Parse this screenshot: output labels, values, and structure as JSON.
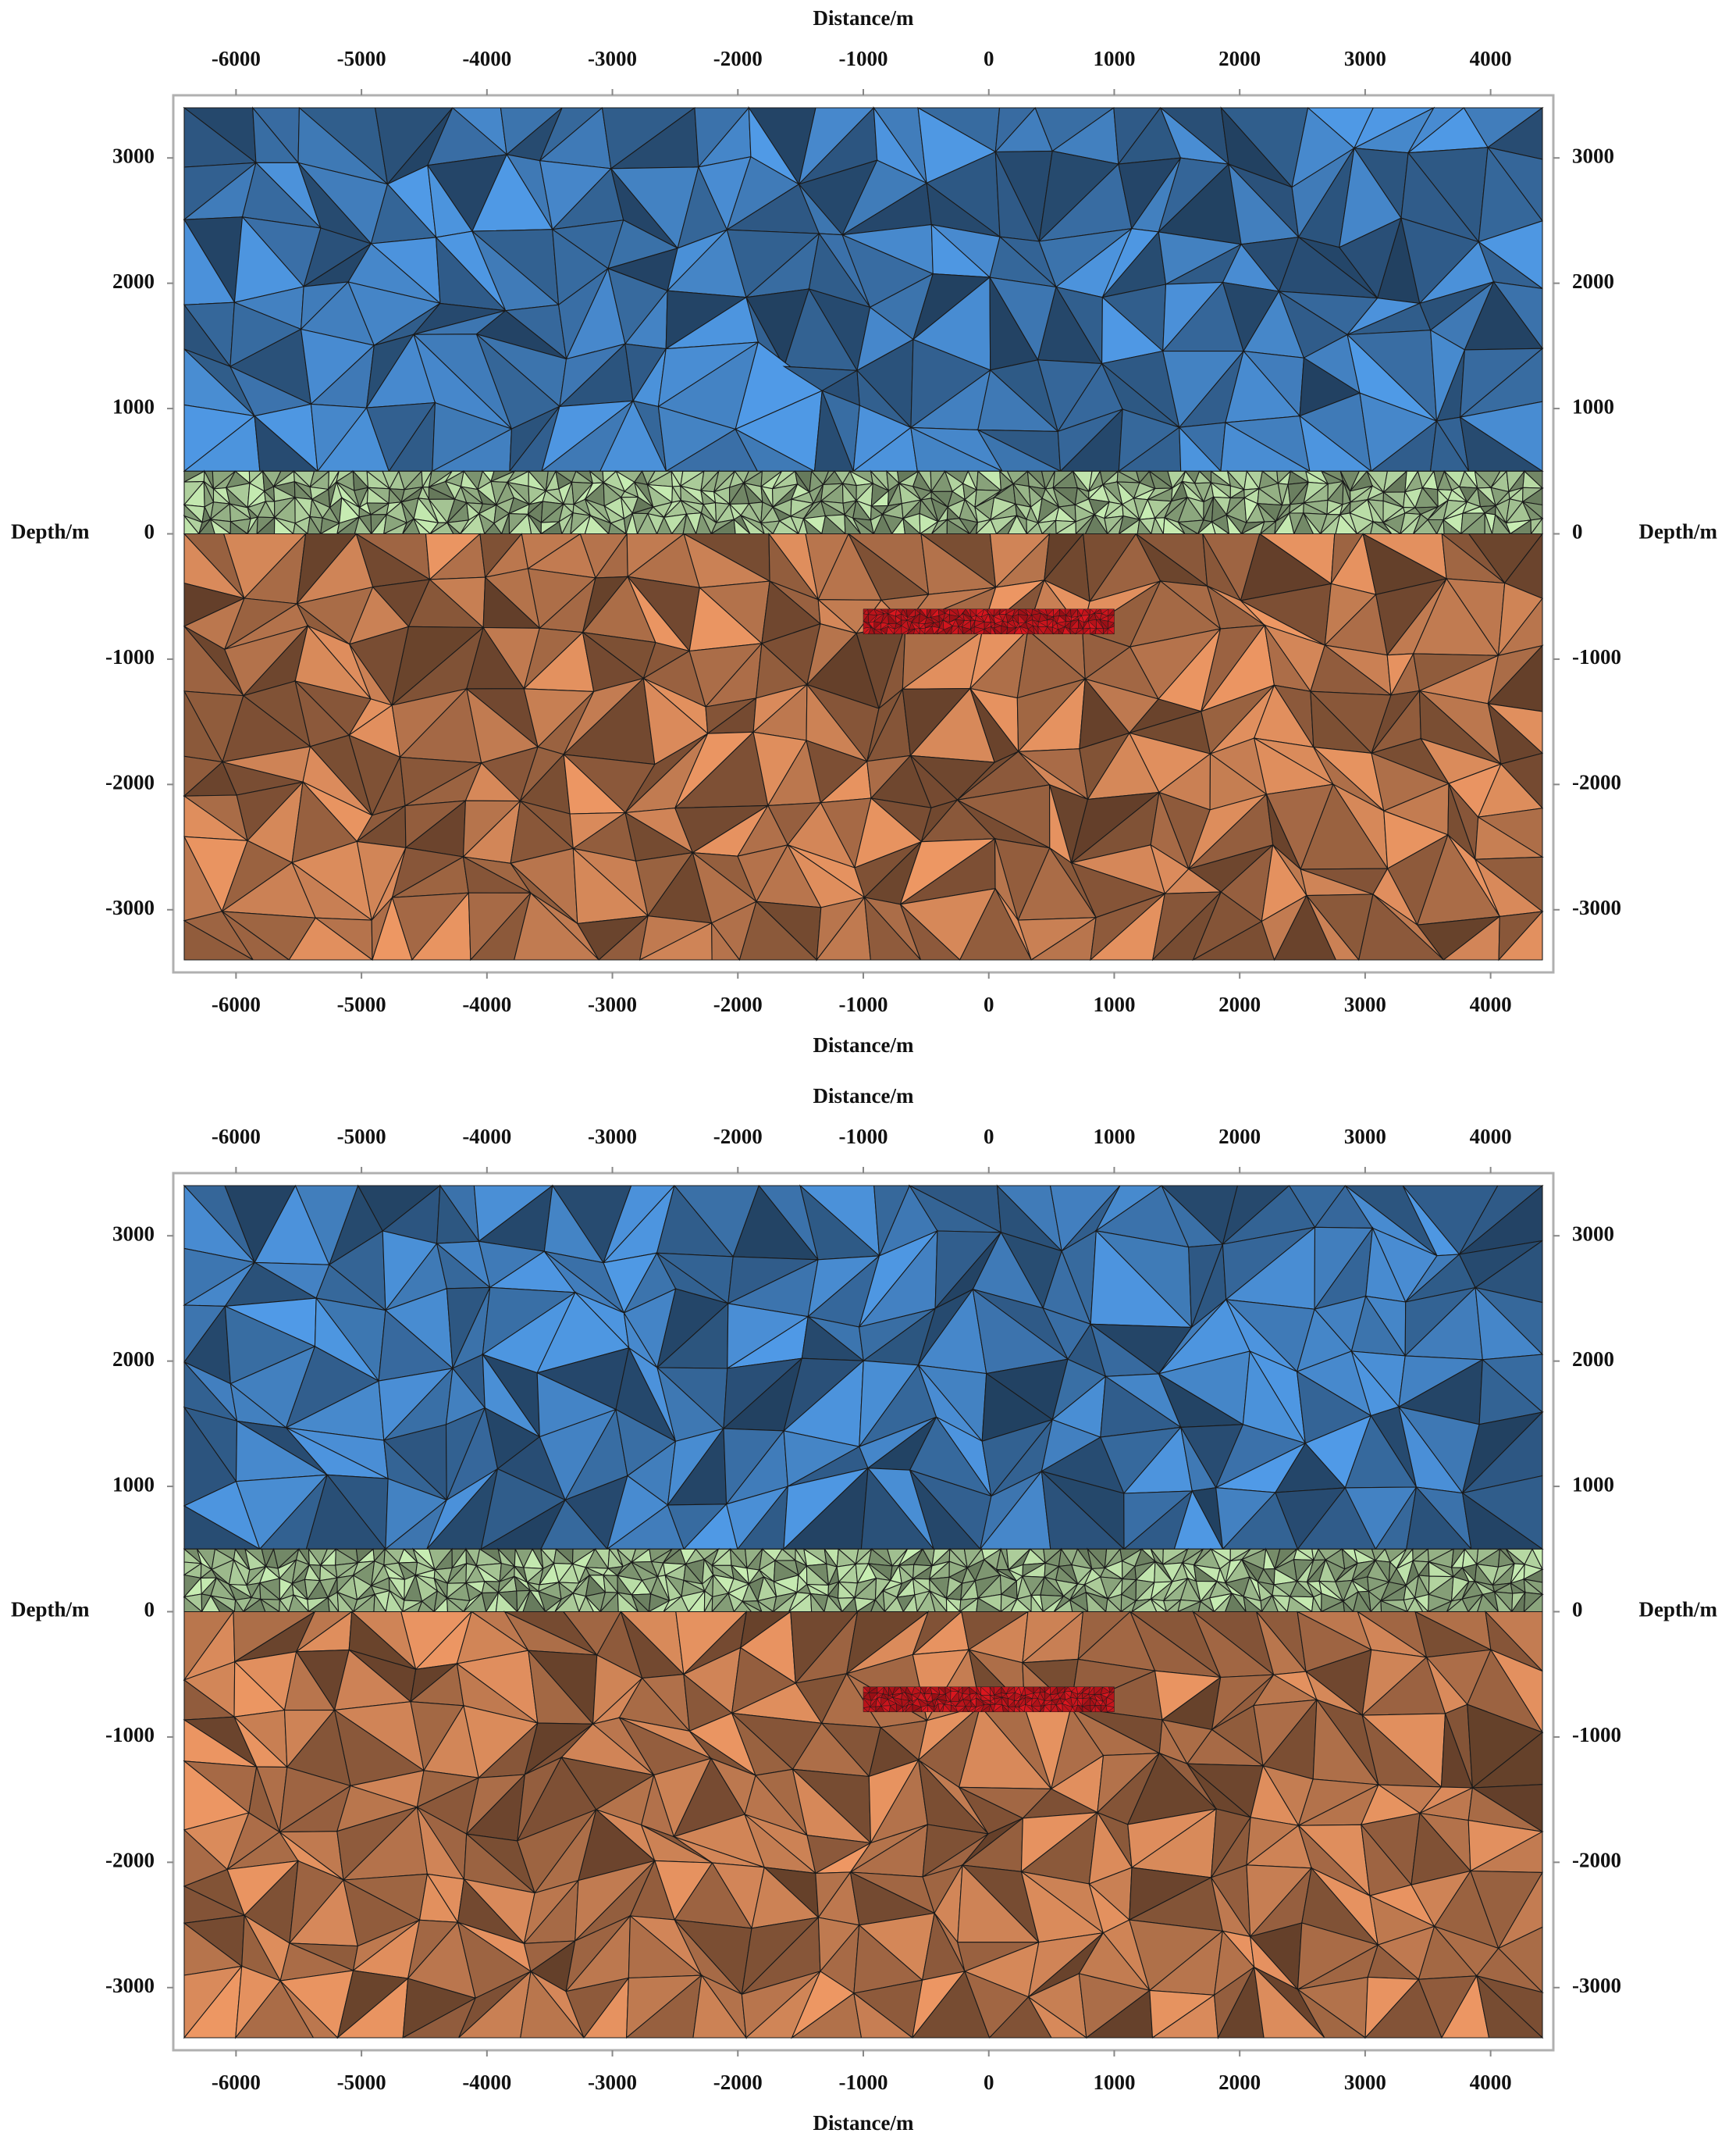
{
  "chart_data": [
    {
      "type": "mesh",
      "xlabel": "Distance/m",
      "ylabel": "Depth/m",
      "xlim": [
        -6500,
        4500
      ],
      "ylim": [
        -3500,
        3500
      ],
      "xticks": [
        -6000,
        -5000,
        -4000,
        -3000,
        -2000,
        -1000,
        0,
        1000,
        2000,
        3000,
        4000
      ],
      "yticks": [
        -3000,
        -2000,
        -1000,
        0,
        1000,
        2000,
        3000
      ],
      "layers": [
        {
          "color": "#4a8fd6",
          "ylim": [
            500,
            3400
          ]
        },
        {
          "color": "#b9dca6",
          "ylim": [
            0,
            500
          ]
        },
        {
          "color": "#dc8c5c",
          "ylim": [
            -3400,
            0
          ]
        }
      ],
      "anomaly": {
        "color": "#c8141c",
        "xlim": [
          -1000,
          1000
        ],
        "ylim": [
          -800,
          -600
        ]
      }
    },
    {
      "type": "mesh",
      "xlabel": "Distance/m",
      "ylabel": "Depth/m",
      "xlim": [
        -6500,
        4500
      ],
      "ylim": [
        -3500,
        3500
      ],
      "xticks": [
        -6000,
        -5000,
        -4000,
        -3000,
        -2000,
        -1000,
        0,
        1000,
        2000,
        3000,
        4000
      ],
      "yticks": [
        -3000,
        -2000,
        -1000,
        0,
        1000,
        2000,
        3000
      ],
      "layers": [
        {
          "color": "#4a8fd6",
          "ylim": [
            500,
            3400
          ]
        },
        {
          "color": "#b9dca6",
          "ylim": [
            0,
            500
          ]
        },
        {
          "color": "#dc8c5c",
          "ylim": [
            -3400,
            0
          ]
        }
      ],
      "anomaly": {
        "color": "#c8141c",
        "xlim": [
          -1000,
          1000
        ],
        "ylim": [
          -800,
          -600
        ]
      }
    }
  ]
}
